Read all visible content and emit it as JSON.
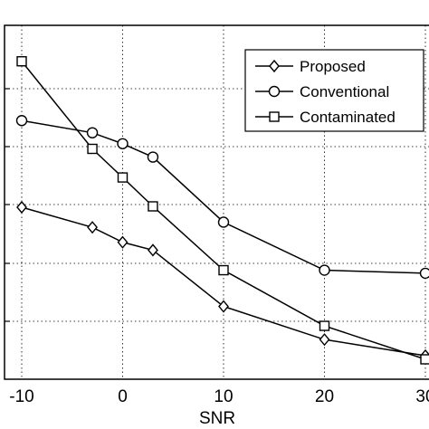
{
  "chart_data": {
    "type": "line",
    "xlabel": "SNR",
    "ylabel": "",
    "title": "",
    "xlim": [
      -10,
      30
    ],
    "ylim": [
      0,
      1
    ],
    "x_ticks": [
      "-10",
      "0",
      "10",
      "20",
      "30"
    ],
    "grid": true,
    "legend_position": "top-right",
    "series": [
      {
        "name": "Proposed",
        "marker": "diamond",
        "color": "#000000",
        "x": [
          -10,
          -3,
          0,
          3,
          10,
          20,
          30
        ],
        "y": [
          0.5,
          0.434,
          0.385,
          0.359,
          0.174,
          0.065,
          0.012
        ]
      },
      {
        "name": "Conventional",
        "marker": "circle",
        "color": "#000000",
        "x": [
          -10,
          -3,
          0,
          3,
          10,
          20,
          30
        ],
        "y": [
          0.785,
          0.745,
          0.709,
          0.665,
          0.451,
          0.293,
          0.283
        ]
      },
      {
        "name": "Contaminated",
        "marker": "square",
        "color": "#000000",
        "x": [
          -10,
          -3,
          0,
          3,
          10,
          20,
          30
        ],
        "y": [
          0.98,
          0.692,
          0.598,
          0.503,
          0.293,
          0.11,
          0.0
        ]
      }
    ]
  }
}
